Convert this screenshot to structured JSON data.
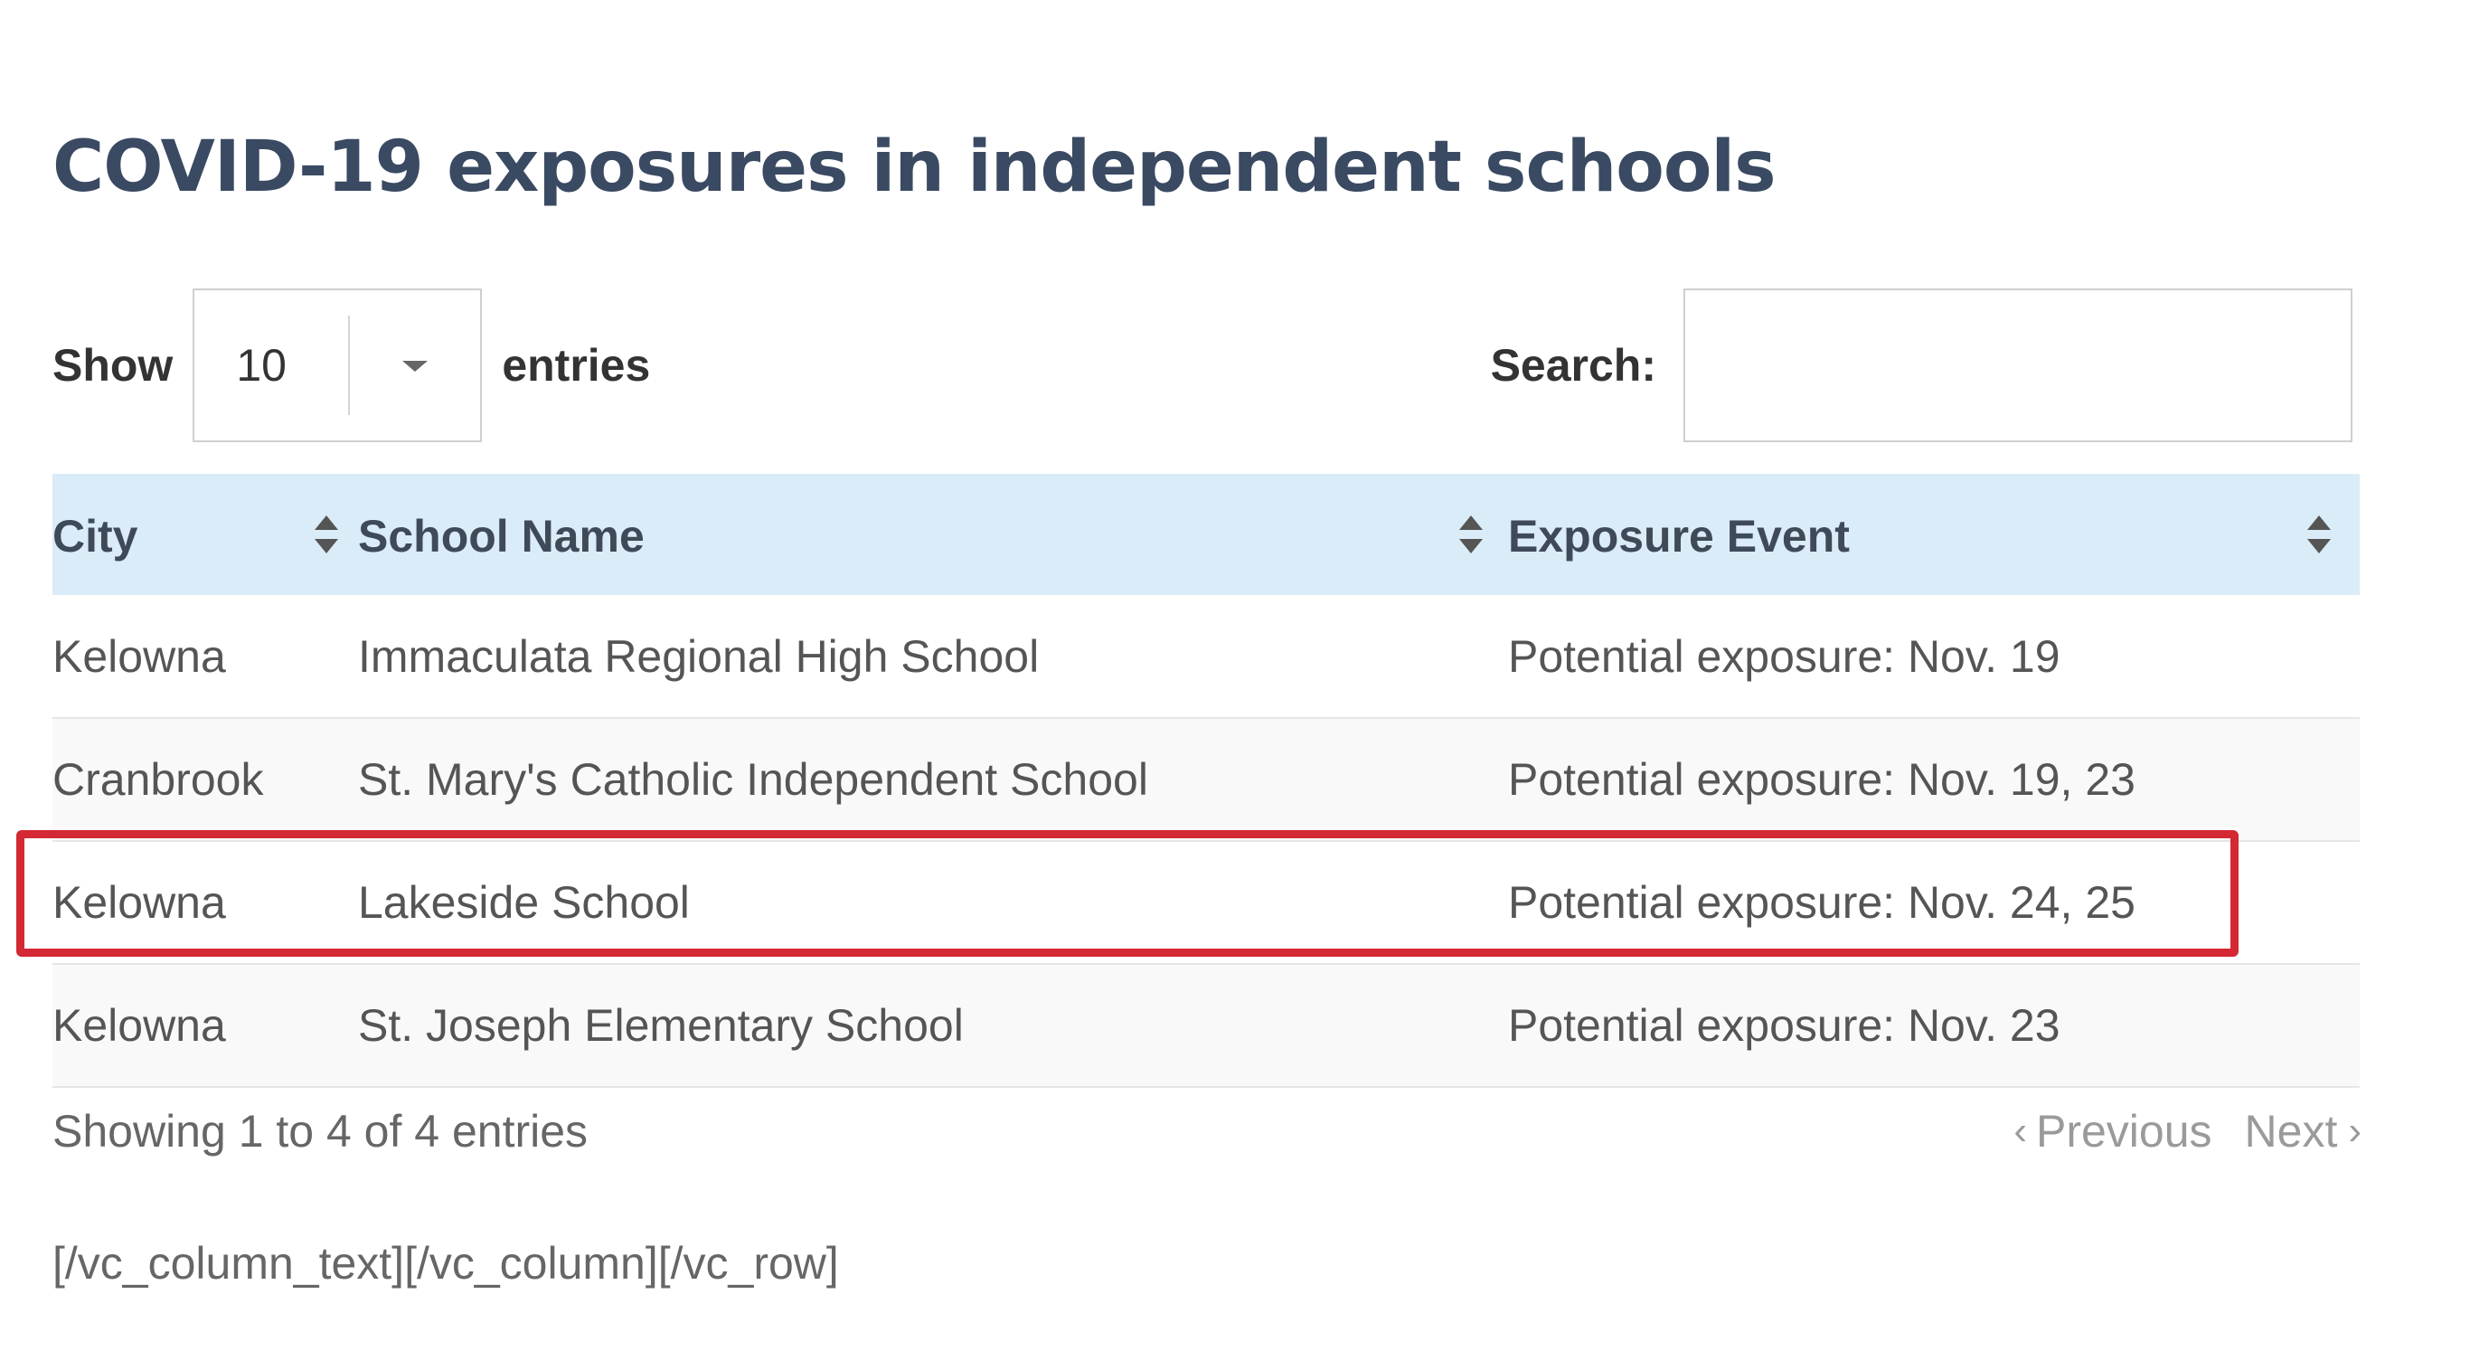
{
  "page": {
    "title": "COVID-19 exposures in independent schools"
  },
  "controls": {
    "show_label": "Show",
    "entries_label": "entries",
    "length_value": "10",
    "search_label": "Search:",
    "search_value": "",
    "search_placeholder": ""
  },
  "table": {
    "headers": {
      "city": "City",
      "school_name": "School Name",
      "exposure_event": "Exposure Event"
    },
    "rows": [
      {
        "city": "Kelowna",
        "school_name": "Immaculata Regional High School",
        "exposure_event": "Potential exposure: Nov. 19"
      },
      {
        "city": "Cranbrook",
        "school_name": "St. Mary's Catholic Independent School",
        "exposure_event": "Potential exposure: Nov. 19, 23"
      },
      {
        "city": "Kelowna",
        "school_name": "Lakeside School",
        "exposure_event": "Potential exposure: Nov. 24, 25"
      },
      {
        "city": "Kelowna",
        "school_name": "St. Joseph Elementary School",
        "exposure_event": "Potential exposure: Nov. 23"
      }
    ],
    "highlighted_row_index": 2
  },
  "footer": {
    "info": "Showing 1 to 4 of 4 entries",
    "previous_label": "Previous",
    "next_label": "Next",
    "shortcode_text": "[/vc_column_text][/vc_column][/vc_row]"
  },
  "icons": {
    "sort": "sort-icon",
    "dropdown": "chevron-down-icon",
    "previous": "chevron-left-icon",
    "next": "chevron-right-icon"
  },
  "colors": {
    "title": "#3a4a62",
    "header_bg": "#d9ecf7",
    "highlight_border": "#d42834",
    "pagination_disabled": "#9a9a9a"
  }
}
